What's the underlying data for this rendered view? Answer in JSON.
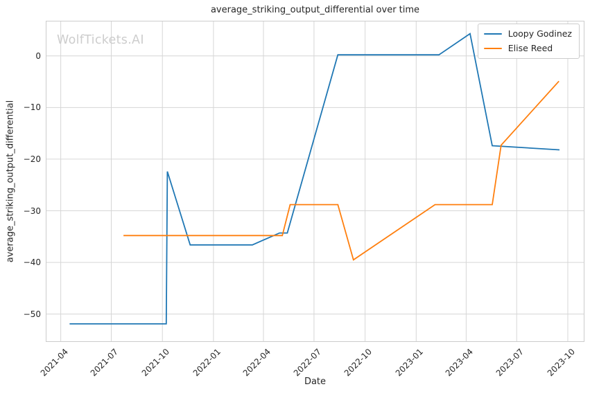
{
  "figure": {
    "title": "average_striking_output_differential over time",
    "watermark": "WolfTickets.AI"
  },
  "chart_data": {
    "type": "line",
    "title": "average_striking_output_differential over time",
    "xlabel": "Date",
    "ylabel": "average_striking_output_differential",
    "grid": true,
    "legend_position": "upper right",
    "x_tick_labels": [
      "2021-04",
      "2021-07",
      "2021-10",
      "2022-01",
      "2022-04",
      "2022-07",
      "2022-10",
      "2023-01",
      "2023-04",
      "2023-07",
      "2023-10"
    ],
    "y_ticks": [
      0,
      -10,
      -20,
      -30,
      -40,
      -50
    ],
    "x_range": [
      "2021-03-05",
      "2023-10-31"
    ],
    "y_range": [
      -55.4,
      6.8
    ],
    "series": [
      {
        "name": "Loopy Godinez",
        "color": "#1f77b4",
        "points": [
          [
            "2021-04-17",
            -51.9
          ],
          [
            "2021-10-08",
            -51.9
          ],
          [
            "2021-10-10",
            -22.4
          ],
          [
            "2021-11-20",
            -36.6
          ],
          [
            "2022-03-12",
            -36.6
          ],
          [
            "2022-04-30",
            -34.3
          ],
          [
            "2022-05-14",
            -34.3
          ],
          [
            "2022-08-13",
            0.2
          ],
          [
            "2023-02-11",
            0.2
          ],
          [
            "2023-04-08",
            4.3
          ],
          [
            "2023-05-18",
            -17.4
          ],
          [
            "2023-09-16",
            -18.2
          ]
        ]
      },
      {
        "name": "Elise Reed",
        "color": "#ff7f0e",
        "points": [
          [
            "2021-07-23",
            -34.8
          ],
          [
            "2022-05-05",
            -34.8
          ],
          [
            "2022-05-19",
            -28.8
          ],
          [
            "2022-08-13",
            -28.8
          ],
          [
            "2022-09-10",
            -39.5
          ],
          [
            "2023-02-04",
            -28.8
          ],
          [
            "2023-05-18",
            -28.8
          ],
          [
            "2023-06-03",
            -17.3
          ],
          [
            "2023-09-15",
            -4.9
          ]
        ]
      }
    ]
  },
  "colors": {
    "background": "#ffffff",
    "grid": "#d6d6d6",
    "spine": "#cccccc",
    "text": "#262626",
    "watermark": "#cdcdcd",
    "series_blue": "#1f77b4",
    "series_orange": "#ff7f0e"
  }
}
